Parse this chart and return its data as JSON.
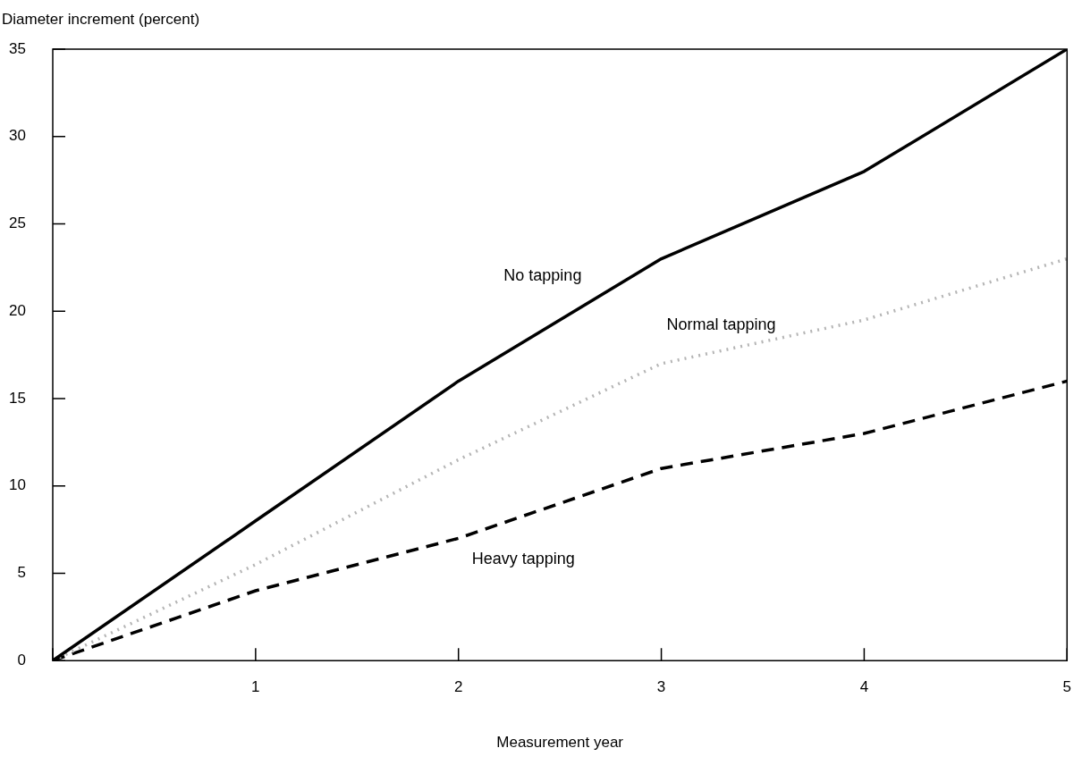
{
  "chart_data": {
    "type": "line",
    "xlabel": "Measurement year",
    "ylabel": "Diameter increment (percent)",
    "x": [
      0,
      1,
      2,
      3,
      4,
      5
    ],
    "series": [
      {
        "name": "No tapping",
        "color": "#000000",
        "line_style": "solid",
        "values": [
          0,
          8,
          16,
          23,
          28,
          35
        ]
      },
      {
        "name": "Normal tapping",
        "color": "#b5b5b5",
        "line_style": "dotted",
        "values": [
          0,
          5.5,
          11.5,
          17,
          19.5,
          23
        ]
      },
      {
        "name": "Heavy tapping",
        "color": "#000000",
        "line_style": "dashed",
        "values": [
          0,
          4,
          7,
          11,
          13,
          16
        ]
      }
    ],
    "xlim": [
      0,
      5
    ],
    "ylim": [
      0,
      35
    ],
    "xticks": [
      {
        "value": 0,
        "label": null
      },
      1,
      2,
      3,
      4,
      5
    ],
    "yticks": [
      0,
      5,
      10,
      15,
      20,
      25,
      30,
      35
    ],
    "grid": false,
    "legend": false,
    "marker": "none"
  }
}
